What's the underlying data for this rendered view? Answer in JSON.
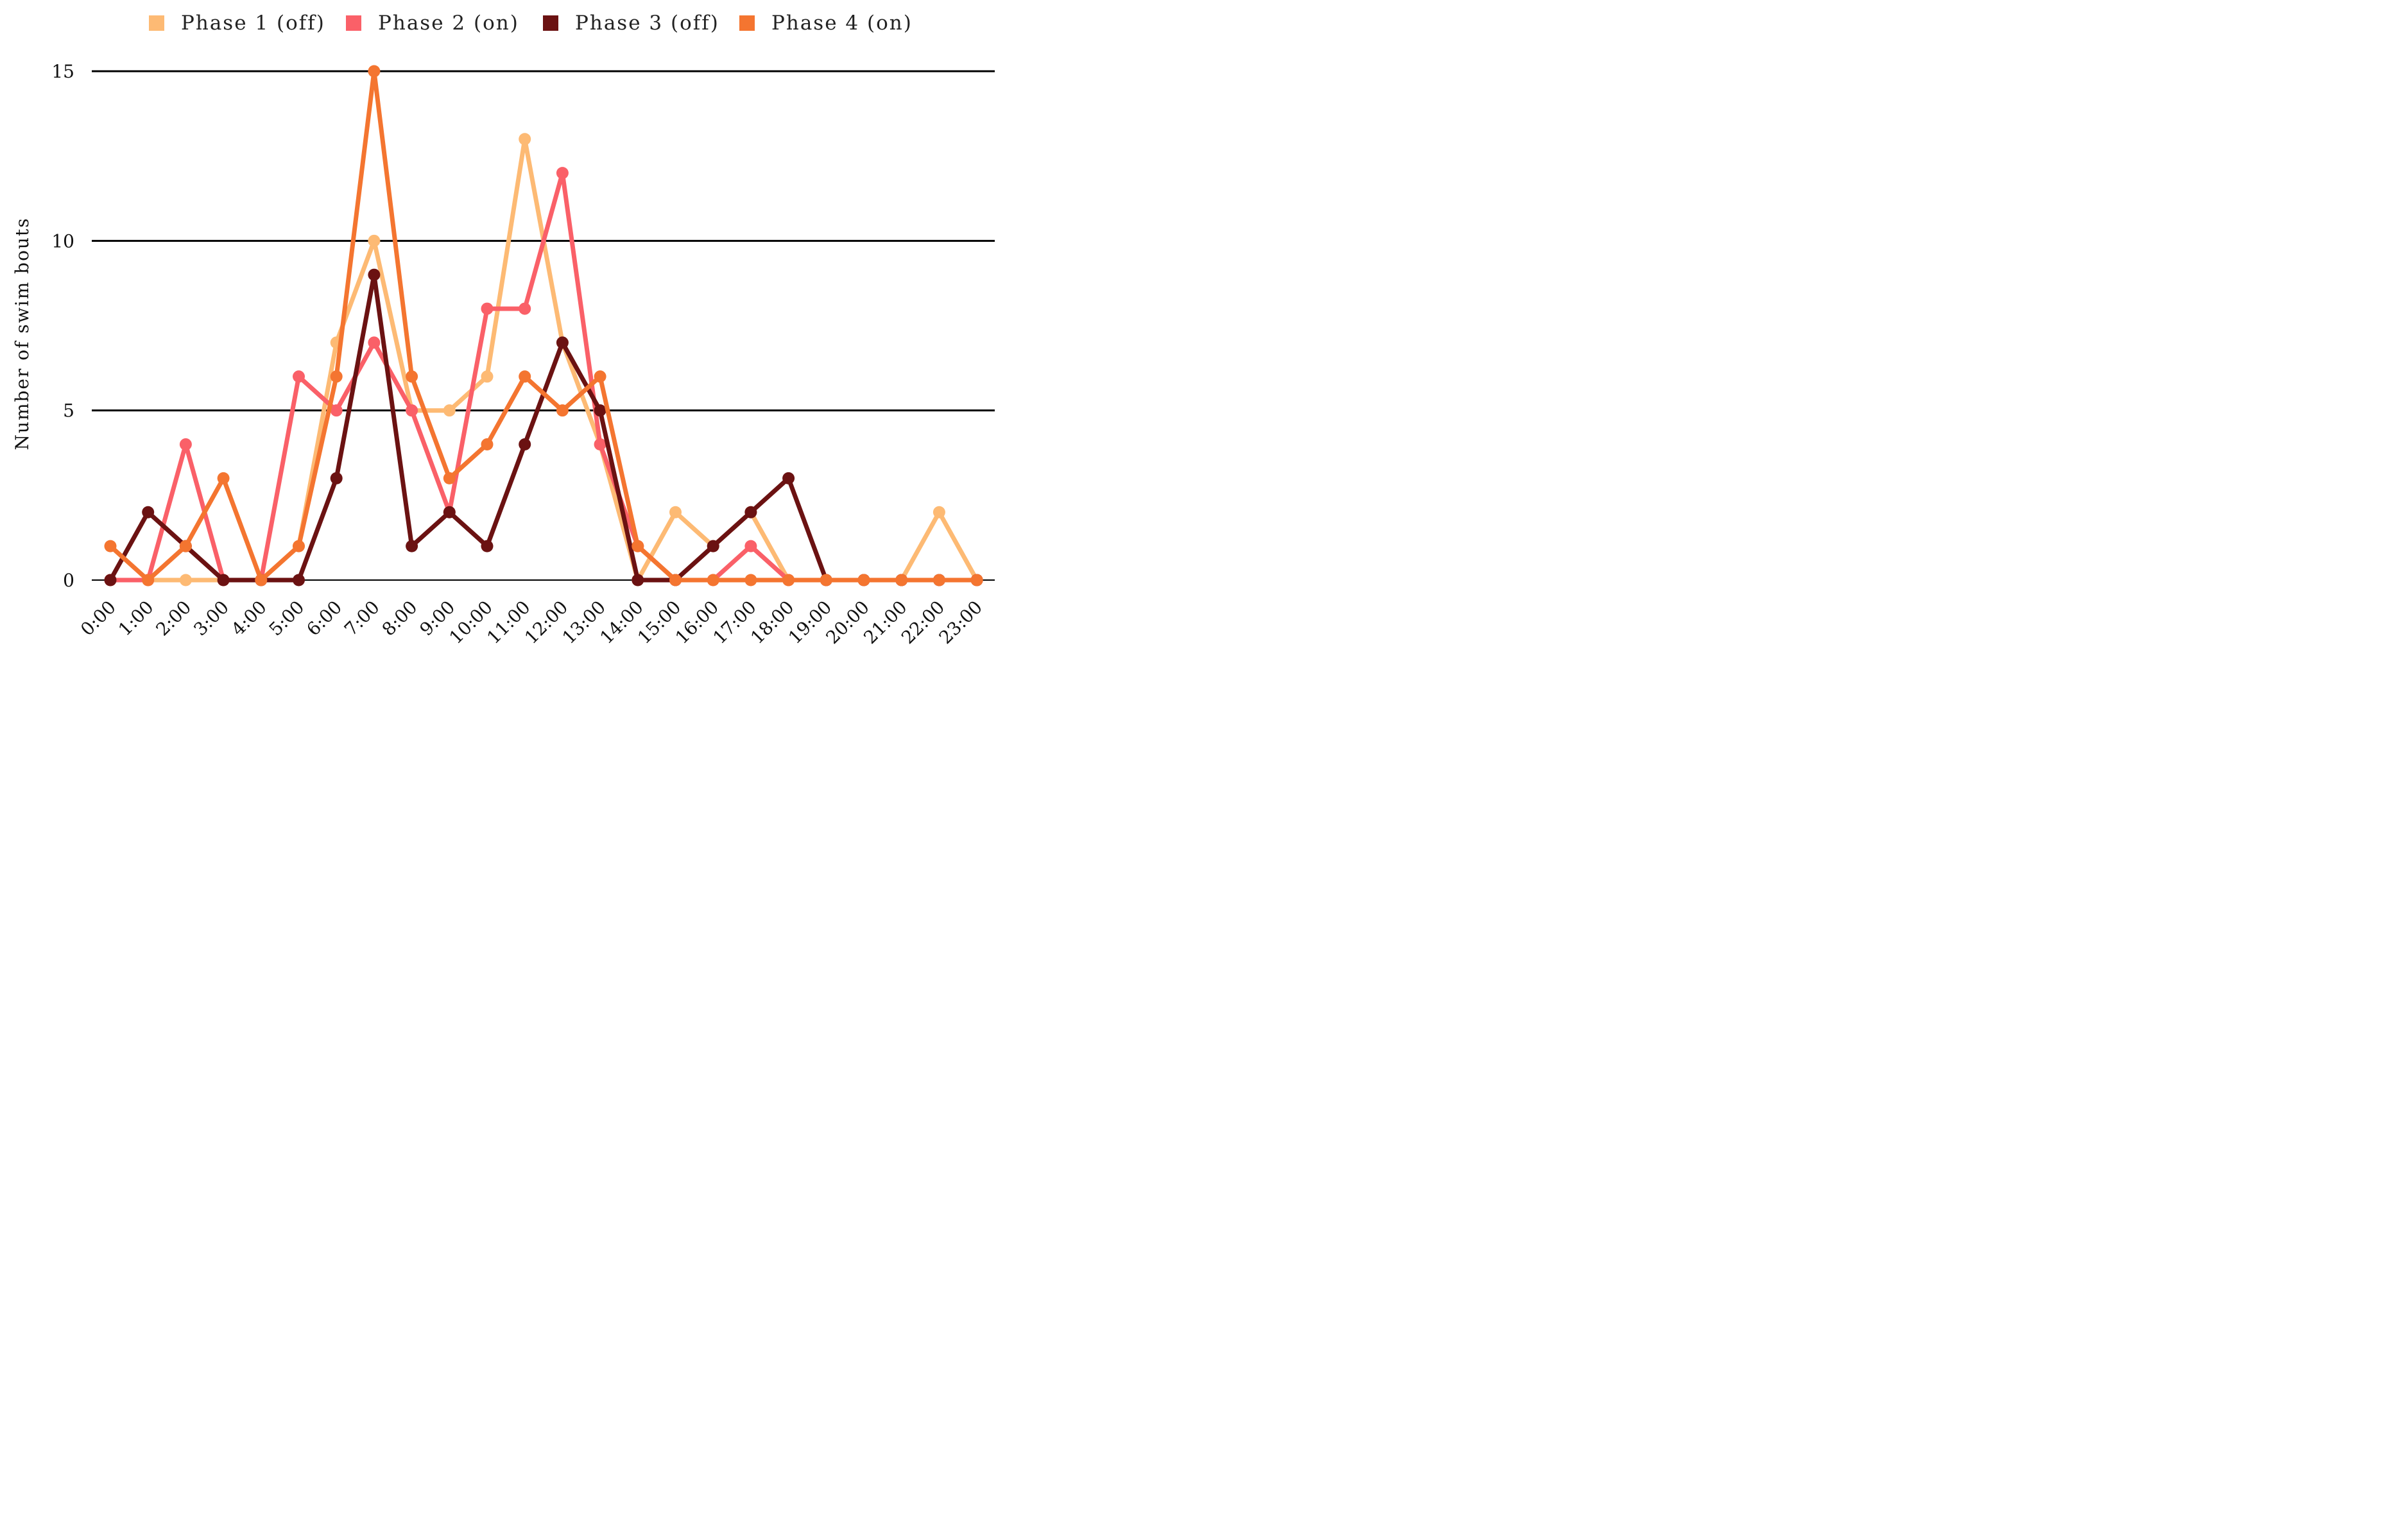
{
  "chart_data": {
    "type": "line",
    "title": "",
    "xlabel": "",
    "ylabel": "Number of swim bouts",
    "ylim": [
      0,
      15
    ],
    "yticks": [
      0,
      5,
      10,
      15
    ],
    "grid": "horizontal",
    "legend_position": "top",
    "categories": [
      "0:00",
      "1:00",
      "2:00",
      "3:00",
      "4:00",
      "5:00",
      "6:00",
      "7:00",
      "8:00",
      "9:00",
      "10:00",
      "11:00",
      "12:00",
      "13:00",
      "14:00",
      "15:00",
      "16:00",
      "17:00",
      "18:00",
      "19:00",
      "20:00",
      "21:00",
      "22:00",
      "23:00"
    ],
    "series": [
      {
        "name": "Phase 1 (off)",
        "color": "#FDBA74",
        "values": [
          0,
          0,
          0,
          0,
          0,
          1,
          7,
          10,
          5,
          5,
          6,
          13,
          7,
          4,
          0,
          2,
          1,
          2,
          0,
          0,
          0,
          0,
          2,
          0
        ]
      },
      {
        "name": "Phase 2 (on)",
        "color": "#FA6068",
        "values": [
          0,
          0,
          4,
          0,
          0,
          6,
          5,
          7,
          5,
          2,
          8,
          8,
          12,
          4,
          1,
          0,
          0,
          1,
          0,
          0,
          0,
          0,
          0,
          0
        ]
      },
      {
        "name": "Phase 3 (off)",
        "color": "#6B1212",
        "values": [
          0,
          2,
          1,
          0,
          0,
          0,
          3,
          9,
          1,
          2,
          1,
          4,
          7,
          5,
          0,
          0,
          1,
          2,
          3,
          0,
          0,
          0,
          0,
          0
        ]
      },
      {
        "name": "Phase 4 (on)",
        "color": "#F47530",
        "values": [
          1,
          0,
          1,
          3,
          0,
          1,
          6,
          15,
          6,
          3,
          4,
          6,
          5,
          6,
          1,
          0,
          0,
          0,
          0,
          0,
          0,
          0,
          0,
          0
        ]
      }
    ]
  }
}
